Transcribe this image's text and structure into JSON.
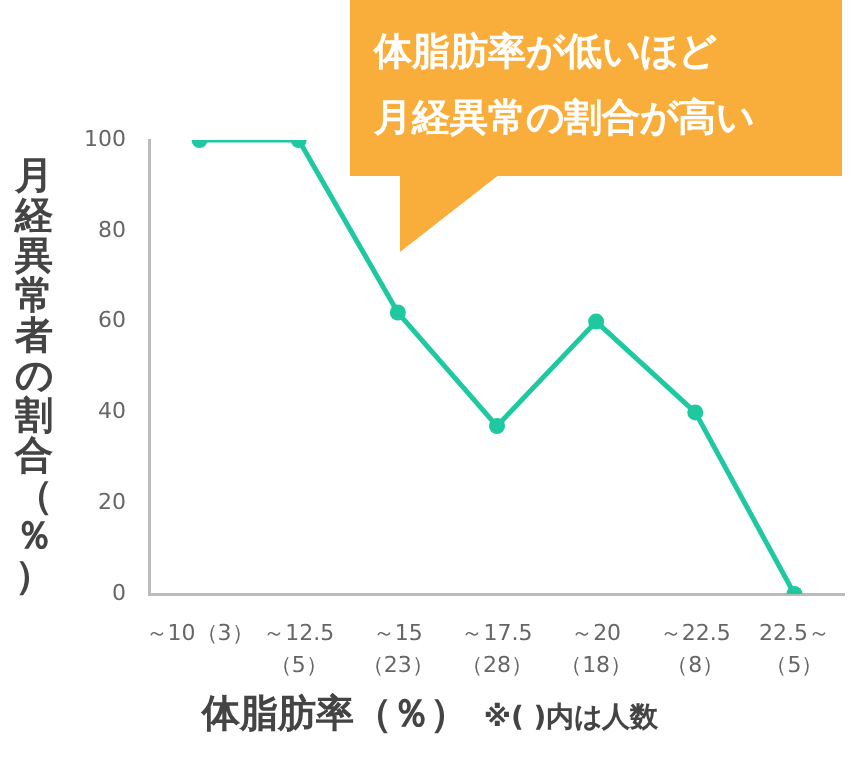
{
  "chart_data": {
    "type": "line",
    "categories": [
      "～10（3）",
      "～12.5（5）",
      "～15（23）",
      "～17.5（28）",
      "～20（18）",
      "～22.5（8）",
      "22.5～（5）"
    ],
    "series": [
      {
        "color": "#1ec8a0",
        "values": [
          100,
          100,
          62,
          37,
          60,
          40,
          0
        ]
      }
    ],
    "ylim": [
      0,
      100
    ],
    "yticks": [
      0,
      20,
      40,
      60,
      80,
      100
    ],
    "grid": false,
    "legend": false,
    "marker": "circle",
    "line_style": "solid",
    "xlabel": "体脂肪率（％）",
    "ylabel": "月経異常者の割合（％）",
    "annotations": [
      "体脂肪率が低いほど",
      "月経異常の割合が高い",
      "※( )内は人数"
    ]
  }
}
